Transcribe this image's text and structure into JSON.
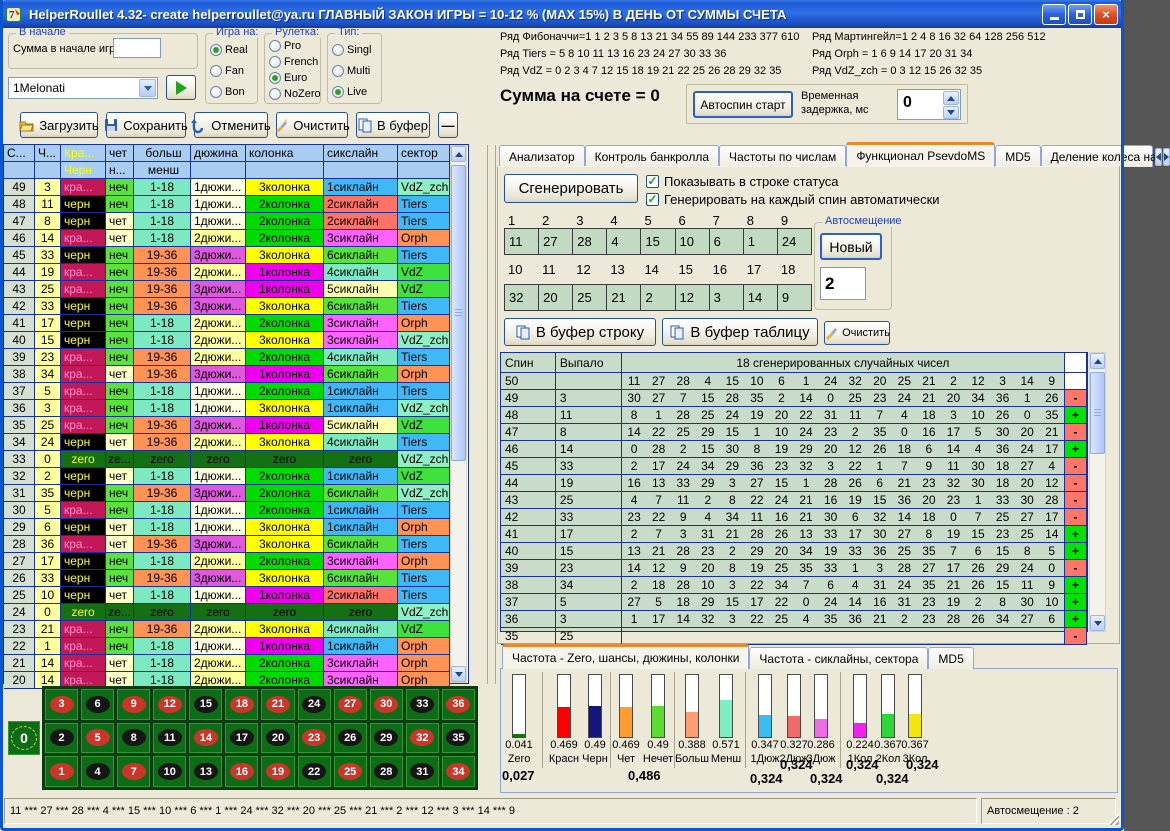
{
  "window": {
    "title": "HelperRoullet 4.32- create helperroullet@ya.ru ГЛАВНЫЙ ЗАКОН ИГРЫ = 10-12 % (MAX 15%) В ДЕНЬ ОТ СУММЫ СЧЕТА"
  },
  "start_group": {
    "title": "В начале",
    "label": "Сумма в начале игры",
    "value": ""
  },
  "preset": {
    "value": "1Melonati"
  },
  "radio_groups": [
    {
      "title": "Игра на:",
      "options": [
        "Real",
        "Fan",
        "Bon"
      ],
      "selected": "Real"
    },
    {
      "title": "Рулетка:",
      "options": [
        "Pro",
        "French",
        "Euro",
        "NoZero"
      ],
      "selected": "Euro"
    },
    {
      "title": "Тип:",
      "options": [
        "Singl",
        "Multi",
        "Live"
      ],
      "selected": "Live"
    }
  ],
  "toolbar": [
    {
      "label": "Загрузить",
      "icon": "open-folder-icon"
    },
    {
      "label": "Сохранить",
      "icon": "floppy-disk-icon"
    },
    {
      "label": "Отменить",
      "icon": "undo-arrow-icon"
    },
    {
      "label": "Очистить",
      "icon": "clean-brush-icon"
    },
    {
      "label": "В буфер",
      "icon": "copy-docs-icon"
    },
    {
      "label": "—",
      "icon": "minus-icon"
    }
  ],
  "series": {
    "left": [
      "Ряд Фибоначчи=1 1 2 3 5 8 13 21 34 55 89 144 233 377 610",
      "Ряд Tiers = 5 8 10 11 13 16 23 24 27 30 33 36",
      "Ряд VdZ = 0 2 3 4 7 12 15 18 19 21 22 25 26 28 29 32 35"
    ],
    "right": [
      "Ряд Мартингейл=1 2 4 8 16 32 64 128 256 512",
      "Ряд Orph = 1 6 9 14 17 20 31 34",
      "Ряд VdZ_zch = 0 3 12 15 26 32 35"
    ]
  },
  "account": {
    "sum": "Сумма на счете = 0",
    "autospin": "Автоспин старт",
    "delay_label": "Временная задержка, мс",
    "delay_value": "0"
  },
  "main_tabs": {
    "labels": [
      "Анализатор",
      "Контроль банкролла",
      "Частоты по числам",
      "Функционал PsevdoMS",
      "MD5",
      "Деление колеса на"
    ],
    "active_index": 3
  },
  "generator": {
    "button": "Сгенерировать",
    "cb1": "Показывать в строке статуса",
    "cb2": "Генерировать на каждый спин автоматически",
    "grid": {
      "h1": [
        "1",
        "2",
        "3",
        "4",
        "5",
        "6",
        "7",
        "8",
        "9"
      ],
      "r1": [
        "11",
        "27",
        "28",
        "4",
        "15",
        "10",
        "6",
        "1",
        "24"
      ],
      "h2": [
        "10",
        "11",
        "12",
        "13",
        "14",
        "15",
        "16",
        "17",
        "18"
      ],
      "r2": [
        "32",
        "20",
        "25",
        "21",
        "2",
        "12",
        "3",
        "14",
        "9"
      ]
    },
    "autoshift": {
      "title": "Автосмещение",
      "button": "Новый",
      "value": "2"
    },
    "buf_row": "В буфер строку",
    "buf_table": "В буфер таблицу",
    "clear": "Очистить"
  },
  "spin_table": {
    "h_spin": "Спин",
    "h_result": "Выпало",
    "h_numbers": "18 сгенерированных случайных чисел",
    "rows": [
      {
        "spin": "50",
        "result": "",
        "st": "",
        "nums": [
          11,
          27,
          28,
          4,
          15,
          10,
          6,
          1,
          24,
          32,
          20,
          25,
          21,
          2,
          12,
          3,
          14,
          9
        ]
      },
      {
        "spin": "49",
        "result": "3",
        "st": "-",
        "nums": [
          30,
          27,
          7,
          15,
          28,
          35,
          2,
          14,
          0,
          25,
          23,
          24,
          21,
          20,
          34,
          36,
          1,
          26
        ]
      },
      {
        "spin": "48",
        "result": "11",
        "st": "+",
        "nums": [
          8,
          1,
          28,
          25,
          24,
          19,
          20,
          22,
          31,
          11,
          7,
          4,
          18,
          3,
          10,
          26,
          0,
          35
        ]
      },
      {
        "spin": "47",
        "result": "8",
        "st": "-",
        "nums": [
          14,
          22,
          25,
          29,
          15,
          1,
          10,
          24,
          23,
          2,
          35,
          0,
          16,
          17,
          5,
          30,
          20,
          21
        ]
      },
      {
        "spin": "46",
        "result": "14",
        "st": "+",
        "nums": [
          0,
          28,
          2,
          15,
          30,
          8,
          19,
          29,
          20,
          12,
          26,
          18,
          6,
          14,
          4,
          36,
          24,
          17
        ]
      },
      {
        "spin": "45",
        "result": "33",
        "st": "-",
        "nums": [
          2,
          17,
          24,
          34,
          29,
          36,
          23,
          32,
          3,
          22,
          1,
          7,
          9,
          11,
          30,
          18,
          27,
          4
        ]
      },
      {
        "spin": "44",
        "result": "19",
        "st": "-",
        "nums": [
          16,
          13,
          33,
          29,
          3,
          27,
          15,
          1,
          28,
          26,
          6,
          21,
          23,
          32,
          30,
          18,
          20,
          12
        ]
      },
      {
        "spin": "43",
        "result": "25",
        "st": "-",
        "nums": [
          4,
          7,
          11,
          2,
          8,
          22,
          24,
          21,
          16,
          19,
          15,
          36,
          20,
          23,
          1,
          33,
          30,
          28
        ]
      },
      {
        "spin": "42",
        "result": "33",
        "st": "-",
        "nums": [
          23,
          22,
          9,
          4,
          34,
          11,
          16,
          21,
          30,
          6,
          32,
          14,
          18,
          0,
          7,
          25,
          27,
          17
        ]
      },
      {
        "spin": "41",
        "result": "17",
        "st": "+",
        "nums": [
          2,
          7,
          3,
          31,
          21,
          28,
          26,
          13,
          33,
          17,
          30,
          27,
          8,
          19,
          15,
          23,
          25,
          14
        ]
      },
      {
        "spin": "40",
        "result": "15",
        "st": "+",
        "nums": [
          13,
          21,
          28,
          23,
          2,
          29,
          20,
          34,
          19,
          33,
          36,
          25,
          35,
          7,
          6,
          15,
          8,
          5
        ]
      },
      {
        "spin": "39",
        "result": "23",
        "st": "-",
        "nums": [
          14,
          12,
          9,
          20,
          8,
          19,
          25,
          35,
          33,
          1,
          3,
          28,
          27,
          17,
          26,
          29,
          24,
          0
        ]
      },
      {
        "spin": "38",
        "result": "34",
        "st": "+",
        "nums": [
          2,
          18,
          28,
          10,
          3,
          22,
          34,
          7,
          6,
          4,
          31,
          24,
          35,
          21,
          26,
          15,
          11,
          9
        ]
      },
      {
        "spin": "37",
        "result": "5",
        "st": "+",
        "nums": [
          27,
          5,
          18,
          29,
          15,
          17,
          22,
          0,
          24,
          14,
          16,
          31,
          23,
          19,
          2,
          8,
          30,
          10
        ]
      },
      {
        "spin": "36",
        "result": "3",
        "st": "+",
        "nums": [
          1,
          17,
          14,
          32,
          3,
          22,
          25,
          4,
          35,
          36,
          21,
          2,
          23,
          28,
          26,
          34,
          27,
          6
        ]
      },
      {
        "spin": "35",
        "result": "25",
        "st": "-",
        "nums": []
      }
    ]
  },
  "freq": {
    "tabs": [
      "Частота - Zero, шансы, дюжины, колонки",
      "Частота - сиклайны, сектора",
      "MD5"
    ],
    "active_index": 0,
    "bars": [
      {
        "name": "Zero",
        "value": "0.041",
        "v": 0.041,
        "color": "#0B7A0B"
      },
      {
        "name": "Красн",
        "value": "0.469",
        "v": 0.469,
        "color": "#FF0000"
      },
      {
        "name": "Черн",
        "value": "0.49",
        "v": 0.49,
        "color": "#15157E"
      },
      {
        "name": "Чет",
        "value": "0.469",
        "v": 0.469,
        "color": "#FF9C2E"
      },
      {
        "name": "Нечет",
        "value": "0.49",
        "v": 0.49,
        "color": "#5CDC30"
      },
      {
        "name": "Больш",
        "value": "0.388",
        "v": 0.388,
        "color": "#FF9C72"
      },
      {
        "name": "Менш",
        "value": "0.571",
        "v": 0.571,
        "color": "#7CEEC0"
      },
      {
        "name": "1Дюж",
        "value": "0.347",
        "v": 0.347,
        "color": "#39BCEE"
      },
      {
        "name": "2Дюж",
        "value": "0.327",
        "v": 0.327,
        "color": "#F2696B"
      },
      {
        "name": "3Дюж",
        "value": "0.286",
        "v": 0.286,
        "color": "#EE6BE4"
      },
      {
        "name": "1Кол",
        "value": "0.224",
        "v": 0.224,
        "color": "#EE22EE"
      },
      {
        "name": "2Кол",
        "value": "0.367",
        "v": 0.367,
        "color": "#2CD838"
      },
      {
        "name": "3Кол",
        "value": "0.367",
        "v": 0.367,
        "color": "#F2E60C"
      }
    ],
    "refs": {
      "zero": "0,027",
      "chances": "0,486",
      "dozens": [
        "0,324",
        "0,324",
        "0,324"
      ],
      "columns": [
        "0,324",
        "0,324",
        "0,324"
      ]
    }
  },
  "history": {
    "headers1": [
      "С...",
      "Ч...",
      "Кра...",
      "чет",
      "больш",
      "дюжина",
      "колонка",
      "сикслайн",
      "сектор"
    ],
    "headers2": [
      "",
      "",
      "Черн",
      "н...",
      "менш",
      "",
      "",
      "",
      ""
    ],
    "rows": [
      [
        "49",
        "3",
        "кра...",
        "неч",
        "1-18",
        "1дюжи...",
        "3колонка",
        "1сиклайн",
        "VdZ_zch"
      ],
      [
        "48",
        "11",
        "черн",
        "неч",
        "1-18",
        "1дюжи...",
        "2колонка",
        "2сиклайн",
        "Tiers"
      ],
      [
        "47",
        "8",
        "черн",
        "чет",
        "1-18",
        "1дюжи...",
        "2колонка",
        "2сиклайн",
        "Tiers"
      ],
      [
        "46",
        "14",
        "кра...",
        "чет",
        "1-18",
        "2дюжи...",
        "2колонка",
        "3сиклайн",
        "Orph"
      ],
      [
        "45",
        "33",
        "черн",
        "неч",
        "19-36",
        "3дюжи...",
        "3колонка",
        "6сиклайн",
        "Tiers"
      ],
      [
        "44",
        "19",
        "кра...",
        "неч",
        "19-36",
        "2дюжи...",
        "1колонка",
        "4сиклайн",
        "VdZ"
      ],
      [
        "43",
        "25",
        "кра...",
        "неч",
        "19-36",
        "3дюжи...",
        "1колонка",
        "5сиклайн",
        "VdZ"
      ],
      [
        "42",
        "33",
        "черн",
        "неч",
        "19-36",
        "3дюжи...",
        "3колонка",
        "6сиклайн",
        "Tiers"
      ],
      [
        "41",
        "17",
        "черн",
        "неч",
        "1-18",
        "2дюжи...",
        "2колонка",
        "3сиклайн",
        "Orph"
      ],
      [
        "40",
        "15",
        "черн",
        "неч",
        "1-18",
        "2дюжи...",
        "3колонка",
        "3сиклайн",
        "VdZ_zch"
      ],
      [
        "39",
        "23",
        "кра...",
        "неч",
        "19-36",
        "2дюжи...",
        "2колонка",
        "4сиклайн",
        "Tiers"
      ],
      [
        "38",
        "34",
        "кра...",
        "чет",
        "19-36",
        "3дюжи...",
        "1колонка",
        "6сиклайн",
        "Orph"
      ],
      [
        "37",
        "5",
        "кра...",
        "неч",
        "1-18",
        "1дюжи...",
        "2колонка",
        "1сиклайн",
        "Tiers"
      ],
      [
        "36",
        "3",
        "кра...",
        "неч",
        "1-18",
        "1дюжи...",
        "3колонка",
        "1сиклайн",
        "VdZ_zch"
      ],
      [
        "35",
        "25",
        "кра...",
        "неч",
        "19-36",
        "3дюжи...",
        "1колонка",
        "5сиклайн",
        "VdZ"
      ],
      [
        "34",
        "24",
        "черн",
        "чет",
        "19-36",
        "2дюжи...",
        "3колонка",
        "4сиклайн",
        "Tiers"
      ],
      [
        "33",
        "0",
        "zero",
        "ze...",
        "zero",
        "zero",
        "zero",
        "zero",
        "VdZ_zch"
      ],
      [
        "32",
        "2",
        "черн",
        "чет",
        "1-18",
        "1дюжи...",
        "2колонка",
        "1сиклайн",
        "VdZ"
      ],
      [
        "31",
        "35",
        "черн",
        "неч",
        "19-36",
        "3дюжи...",
        "2колонка",
        "6сиклайн",
        "VdZ_zch"
      ],
      [
        "30",
        "5",
        "кра...",
        "неч",
        "1-18",
        "1дюжи...",
        "2колонка",
        "1сиклайн",
        "Tiers"
      ],
      [
        "29",
        "6",
        "черн",
        "чет",
        "1-18",
        "1дюжи...",
        "3колонка",
        "1сиклайн",
        "Orph"
      ],
      [
        "28",
        "36",
        "кра...",
        "чет",
        "19-36",
        "3дюжи...",
        "3колонка",
        "6сиклайн",
        "Tiers"
      ],
      [
        "27",
        "17",
        "черн",
        "неч",
        "1-18",
        "2дюжи...",
        "2колонка",
        "3сиклайн",
        "Orph"
      ],
      [
        "26",
        "33",
        "черн",
        "неч",
        "19-36",
        "3дюжи...",
        "3колонка",
        "6сиклайн",
        "Tiers"
      ],
      [
        "25",
        "10",
        "черн",
        "чет",
        "1-18",
        "1дюжи...",
        "1колонка",
        "2сиклайн",
        "Tiers"
      ],
      [
        "24",
        "0",
        "zero",
        "ze...",
        "zero",
        "zero",
        "zero",
        "zero",
        "VdZ_zch"
      ],
      [
        "23",
        "21",
        "кра...",
        "неч",
        "19-36",
        "2дюжи...",
        "3колонка",
        "4сиклайн",
        "VdZ"
      ],
      [
        "22",
        "1",
        "кра...",
        "неч",
        "1-18",
        "1дюжи...",
        "1колонка",
        "1сиклайн",
        "Orph"
      ],
      [
        "21",
        "14",
        "кра...",
        "чет",
        "1-18",
        "2дюжи...",
        "2колонка",
        "3сиклайн",
        "Orph"
      ],
      [
        "20",
        "14",
        "кра...",
        "чет",
        "1-18",
        "2дюжи...",
        "2колонка",
        "3сиклайн",
        "Orph"
      ]
    ],
    "value_colors": {
      "кра...": {
        "bg": "#C21858",
        "fg": "#FF8FD0"
      },
      "черн": {
        "bg": "#000000",
        "fg": "#FFFF00"
      },
      "zero": {
        "bg": "#157015",
        "fg": "#000000"
      },
      "ze...": {
        "bg": "#157015",
        "fg": "#000000"
      },
      "чет": {
        "bg": "#FFFFC8",
        "fg": "#000000"
      },
      "неч": {
        "bg": "#5CE23C",
        "fg": "#000000"
      },
      "1-18": {
        "bg": "#7CE9C3",
        "fg": "#000000"
      },
      "19-36": {
        "bg": "#FF9255",
        "fg": "#000000"
      },
      "1дюжи...": {
        "bg": "#FFFFE2",
        "fg": "#000000"
      },
      "2дюжи...": {
        "bg": "#FFFF9C",
        "fg": "#000000"
      },
      "3дюжи...": {
        "bg": "#DE59DE",
        "fg": "#000000"
      },
      "1колонка": {
        "bg": "#EE00EE",
        "fg": "#000000"
      },
      "2колонка": {
        "bg": "#00DC00",
        "fg": "#000000"
      },
      "3колонка": {
        "bg": "#FFFF00",
        "fg": "#000000"
      },
      "1сиклайн": {
        "bg": "#3FB8F5",
        "fg": "#000000"
      },
      "2сиклайн": {
        "bg": "#FF7265",
        "fg": "#000000"
      },
      "3сиклайн": {
        "bg": "#FF63FF",
        "fg": "#000000"
      },
      "4сиклайн": {
        "bg": "#7CE9C3",
        "fg": "#000000"
      },
      "5сиклайн": {
        "bg": "#FFFFB0",
        "fg": "#000000"
      },
      "6сиклайн": {
        "bg": "#57E23C",
        "fg": "#000000"
      },
      "Tiers": {
        "bg": "#3FB8F5",
        "fg": "#000000"
      },
      "Orph": {
        "bg": "#FF9255",
        "fg": "#000000"
      },
      "VdZ": {
        "bg": "#3FE23C",
        "fg": "#000000"
      },
      "VdZ_zch": {
        "bg": "#8FEFC4",
        "fg": "#000000"
      }
    },
    "col_bg": {
      "spin": "#D6E0D2",
      "num": "#FFFF9E"
    }
  },
  "board": {
    "zero": "0",
    "rows": [
      [
        "3",
        "6",
        "9",
        "12",
        "15",
        "18",
        "21",
        "24",
        "27",
        "30",
        "33",
        "36"
      ],
      [
        "2",
        "5",
        "8",
        "11",
        "14",
        "17",
        "20",
        "23",
        "26",
        "29",
        "32",
        "35"
      ],
      [
        "1",
        "4",
        "7",
        "10",
        "13",
        "16",
        "19",
        "22",
        "25",
        "28",
        "31",
        "34"
      ]
    ],
    "red_numbers": [
      1,
      3,
      5,
      7,
      9,
      12,
      14,
      16,
      18,
      19,
      21,
      23,
      25,
      27,
      30,
      32,
      34,
      36
    ]
  },
  "status_bar": {
    "left": "11 *** 27 *** 28 *** 4 *** 15 *** 10 *** 6 *** 1 *** 24 *** 32 *** 20 *** 25 *** 21 *** 2 *** 12 *** 3 *** 14 *** 9",
    "right": "Автосмещение : 2"
  },
  "palette": {
    "status_plus": "#00E400",
    "status_minus": "#FF7668",
    "table_bg": "#C9DCC9",
    "grid_line": "#16309C",
    "header_bg": "#A8CCF2",
    "accent_orange": "#E68B2C"
  }
}
